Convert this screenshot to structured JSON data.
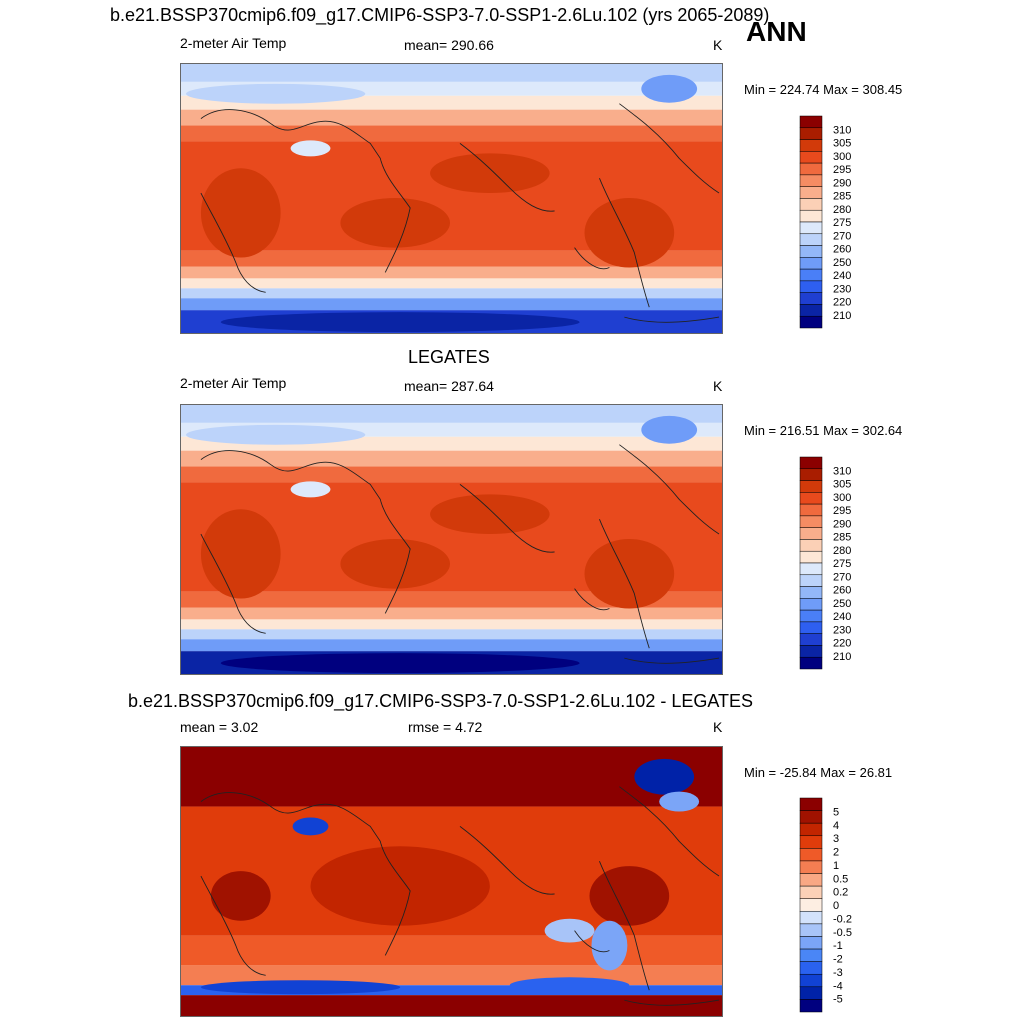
{
  "header": {
    "main_title": "b.e21.BSSP370cmip6.f09_g17.CMIP6-SSP3-7.0-SSP1-2.6Lu.102 (yrs 2065-2089)",
    "season": "ANN"
  },
  "colors": {
    "abs_scale": [
      "#00007f",
      "#0a24a5",
      "#1f3fd1",
      "#2e5ff0",
      "#4a7ff7",
      "#6f9cf8",
      "#93b7f8",
      "#bcd3fa",
      "#dde9fb",
      "#fde7d6",
      "#fbd0b6",
      "#f9ae8c",
      "#f58c63",
      "#f06a3e",
      "#e84a1d",
      "#d23a0a",
      "#a91d00",
      "#8b0000"
    ],
    "diff_scale": [
      "#00007f",
      "#0022a8",
      "#1142d4",
      "#2a62ef",
      "#4a86f6",
      "#7ba5f7",
      "#a8c4f8",
      "#d3e2fb",
      "#fdeee2",
      "#fcd1b7",
      "#f9a884",
      "#f47e52",
      "#ef5a28",
      "#e03c0b",
      "#c22500",
      "#a01200",
      "#8b0000"
    ]
  },
  "chart_data": [
    {
      "type": "heatmap",
      "title": "",
      "variable": "2-meter Air Temp",
      "mean_text": "mean= 290.66",
      "units": "K",
      "minmax": "Min = 224.74 Max = 308.45",
      "min": 224.74,
      "max": 308.45,
      "mean": 290.66,
      "colorbar_levels": [
        "310",
        "305",
        "300",
        "295",
        "290",
        "285",
        "280",
        "275",
        "270",
        "260",
        "250",
        "240",
        "230",
        "220",
        "210"
      ]
    },
    {
      "type": "heatmap",
      "title": "LEGATES",
      "variable": "2-meter Air Temp",
      "mean_text": "mean= 287.64",
      "units": "K",
      "minmax": "Min = 216.51 Max = 302.64",
      "min": 216.51,
      "max": 302.64,
      "mean": 287.64,
      "colorbar_levels": [
        "310",
        "305",
        "300",
        "295",
        "290",
        "285",
        "280",
        "275",
        "270",
        "260",
        "250",
        "240",
        "230",
        "220",
        "210"
      ]
    },
    {
      "type": "heatmap",
      "title": "b.e21.BSSP370cmip6.f09_g17.CMIP6-SSP3-7.0-SSP1-2.6Lu.102 - LEGATES",
      "mean_text": "mean =   3.02",
      "rmse_text": "rmse =   4.72",
      "units": "K",
      "minmax": "Min = -25.84 Max =  26.81",
      "min": -25.84,
      "max": 26.81,
      "mean": 3.02,
      "rmse": 4.72,
      "colorbar_levels": [
        "5",
        "4",
        "3",
        "2",
        "1",
        "0.5",
        "0.2",
        "0",
        "-0.2",
        "-0.5",
        "-1",
        "-2",
        "-3",
        "-4",
        "-5"
      ]
    }
  ]
}
